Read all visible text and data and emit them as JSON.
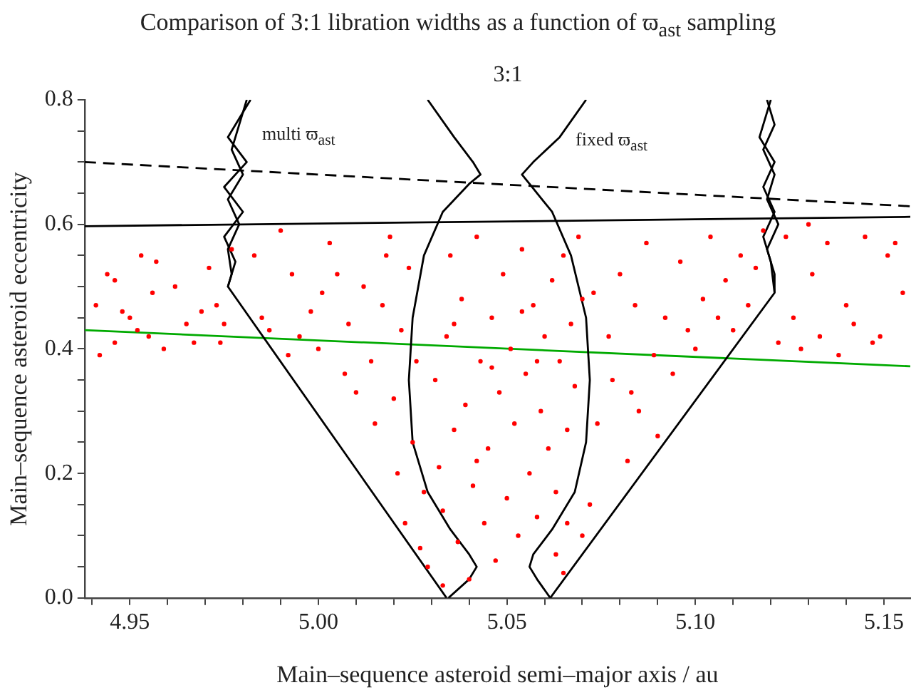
{
  "chart_data": {
    "type": "scatter",
    "title": "Comparison of 3:1 libration widths as a function of ϖ$_{ast}$ sampling",
    "subtitle": "3:1",
    "xlabel": "Main–sequence asteroid semi–major axis / au",
    "ylabel": "Main–sequence asteroid eccentricity",
    "annotations": [
      "multi ϖ$_{ast}$",
      "fixed ϖ$_{ast}$"
    ],
    "xlim": [
      4.938,
      5.157
    ],
    "xticks": [
      {
        "value": 4.94,
        "label": null
      },
      {
        "value": 4.95,
        "label": "4.95"
      },
      {
        "value": 4.96,
        "label": null
      },
      {
        "value": 4.97,
        "label": null
      },
      {
        "value": 4.98,
        "label": null
      },
      {
        "value": 4.99,
        "label": null
      },
      {
        "value": 5,
        "label": "5.00"
      },
      {
        "value": 5.01,
        "label": null
      },
      {
        "value": 5.02,
        "label": null
      },
      {
        "value": 5.03,
        "label": null
      },
      {
        "value": 5.04,
        "label": null
      },
      {
        "value": 5.05,
        "label": "5.05"
      },
      {
        "value": 5.06,
        "label": null
      },
      {
        "value": 5.07,
        "label": null
      },
      {
        "value": 5.08,
        "label": null
      },
      {
        "value": 5.09,
        "label": null
      },
      {
        "value": 5.1,
        "label": "5.10"
      },
      {
        "value": 5.11,
        "label": null
      },
      {
        "value": 5.12,
        "label": null
      },
      {
        "value": 5.13,
        "label": null
      },
      {
        "value": 5.14,
        "label": null
      },
      {
        "value": 5.15,
        "label": "5.15"
      }
    ],
    "ylim": [
      0,
      0.8
    ],
    "yticks": [
      {
        "value": 0,
        "label": "0.0"
      },
      {
        "value": 0.05,
        "label": null
      },
      {
        "value": 0.1,
        "label": null
      },
      {
        "value": 0.15,
        "label": null
      },
      {
        "value": 0.2,
        "label": "0.2"
      },
      {
        "value": 0.25,
        "label": null
      },
      {
        "value": 0.3,
        "label": null
      },
      {
        "value": 0.35,
        "label": null
      },
      {
        "value": 0.4,
        "label": "0.4"
      },
      {
        "value": 0.45,
        "label": null
      },
      {
        "value": 0.5,
        "label": null
      },
      {
        "value": 0.55,
        "label": null
      },
      {
        "value": 0.6,
        "label": "0.6"
      },
      {
        "value": 0.65,
        "label": null
      },
      {
        "value": 0.7,
        "label": null
      },
      {
        "value": 0.75,
        "label": null
      },
      {
        "value": 0.8,
        "label": "0.8"
      }
    ],
    "grid": false,
    "legend": false,
    "series": [
      {
        "type": "scatter",
        "color": "#ff0000",
        "marker": "circle",
        "x": [
          4.941,
          4.942,
          4.944,
          4.946,
          4.948,
          4.95,
          4.952,
          4.953,
          4.955,
          4.957,
          4.959,
          4.962,
          4.965,
          4.967,
          4.969,
          4.971,
          4.973,
          4.975,
          4.974,
          4.977,
          4.956,
          4.946,
          4.983,
          4.985,
          4.987,
          4.99,
          4.992,
          4.995,
          4.998,
          5.0,
          5.003,
          5.005,
          5.007,
          5.008,
          5.01,
          5.012,
          5.014,
          5.015,
          5.017,
          5.018,
          5.02,
          5.021,
          5.022,
          5.023,
          5.025,
          5.024,
          5.027,
          5.028,
          5.029,
          5.033,
          5.026,
          5.019,
          5.001,
          4.993,
          5.031,
          5.032,
          5.033,
          5.034,
          5.035,
          5.036,
          5.037,
          5.038,
          5.039,
          5.04,
          5.041,
          5.042,
          5.043,
          5.044,
          5.045,
          5.046,
          5.047,
          5.048,
          5.049,
          5.05,
          5.051,
          5.052,
          5.053,
          5.054,
          5.055,
          5.056,
          5.057,
          5.058,
          5.059,
          5.06,
          5.061,
          5.062,
          5.063,
          5.064,
          5.065,
          5.066,
          5.067,
          5.068,
          5.069,
          5.07,
          5.036,
          5.046,
          5.054,
          5.058,
          5.042,
          5.063,
          5.066,
          5.065,
          5.072,
          5.074,
          5.07,
          5.077,
          5.078,
          5.08,
          5.082,
          5.084,
          5.085,
          5.087,
          5.089,
          5.09,
          5.092,
          5.094,
          5.096,
          5.098,
          5.1,
          5.102,
          5.104,
          5.106,
          5.108,
          5.11,
          5.112,
          5.114,
          5.116,
          5.118,
          5.083,
          5.073,
          5.124,
          5.126,
          5.128,
          5.131,
          5.133,
          5.135,
          5.138,
          5.14,
          5.142,
          5.145,
          5.147,
          5.149,
          5.151,
          5.153,
          5.155,
          5.13,
          5.122
        ],
        "values": [
          0.47,
          0.39,
          0.52,
          0.51,
          0.46,
          0.45,
          0.43,
          0.55,
          0.42,
          0.54,
          0.4,
          0.5,
          0.44,
          0.41,
          0.46,
          0.53,
          0.47,
          0.44,
          0.41,
          0.56,
          0.49,
          0.41,
          0.55,
          0.45,
          0.43,
          0.59,
          0.39,
          0.42,
          0.46,
          0.4,
          0.57,
          0.52,
          0.36,
          0.44,
          0.33,
          0.5,
          0.38,
          0.28,
          0.47,
          0.55,
          0.32,
          0.2,
          0.43,
          0.12,
          0.25,
          0.53,
          0.08,
          0.17,
          0.05,
          0.02,
          0.38,
          0.58,
          0.49,
          0.52,
          0.35,
          0.21,
          0.14,
          0.42,
          0.55,
          0.27,
          0.09,
          0.48,
          0.31,
          0.03,
          0.18,
          0.58,
          0.38,
          0.12,
          0.24,
          0.45,
          0.06,
          0.33,
          0.52,
          0.16,
          0.4,
          0.28,
          0.1,
          0.56,
          0.36,
          0.2,
          0.47,
          0.13,
          0.3,
          0.42,
          0.24,
          0.51,
          0.17,
          0.38,
          0.55,
          0.27,
          0.44,
          0.34,
          0.58,
          0.48,
          0.44,
          0.37,
          0.46,
          0.38,
          0.22,
          0.07,
          0.12,
          0.04,
          0.15,
          0.28,
          0.1,
          0.42,
          0.35,
          0.52,
          0.22,
          0.47,
          0.3,
          0.57,
          0.39,
          0.26,
          0.45,
          0.36,
          0.54,
          0.43,
          0.4,
          0.48,
          0.58,
          0.45,
          0.51,
          0.43,
          0.55,
          0.47,
          0.53,
          0.59,
          0.33,
          0.49,
          0.58,
          0.45,
          0.4,
          0.52,
          0.42,
          0.57,
          0.39,
          0.47,
          0.44,
          0.58,
          0.41,
          0.42,
          0.55,
          0.57,
          0.49,
          0.6,
          0.41
        ]
      },
      {
        "type": "line",
        "color": "#000000",
        "marker": "none",
        "line_style": "solid",
        "x": [
          4.981,
          4.979,
          4.977,
          4.98,
          4.976,
          4.979,
          4.976,
          4.977,
          4.976,
          5.034
        ],
        "values": [
          0.8,
          0.76,
          0.72,
          0.68,
          0.64,
          0.6,
          0.56,
          0.52,
          0.5,
          0
        ]
      },
      {
        "type": "line",
        "color": "#000000",
        "marker": "none",
        "line_style": "solid",
        "x": [
          4.982,
          4.976,
          4.981,
          4.975,
          4.98,
          4.975,
          4.978,
          4.976
        ],
        "values": [
          0.8,
          0.74,
          0.7,
          0.66,
          0.62,
          0.58,
          0.54,
          0.5
        ]
      },
      {
        "type": "line",
        "color": "#000000",
        "marker": "none",
        "line_style": "solid",
        "x": [
          5.119,
          5.121,
          5.118,
          5.121,
          5.119,
          5.122,
          5.119,
          5.121,
          5.121,
          5.0615
        ],
        "values": [
          0.8,
          0.76,
          0.72,
          0.68,
          0.64,
          0.6,
          0.56,
          0.52,
          0.49,
          0
        ]
      },
      {
        "type": "line",
        "color": "#000000",
        "marker": "none",
        "line_style": "solid",
        "x": [
          5.12,
          5.117,
          5.121,
          5.118,
          5.121,
          5.118,
          5.12,
          5.121
        ],
        "values": [
          0.8,
          0.74,
          0.7,
          0.66,
          0.62,
          0.58,
          0.54,
          0.49
        ]
      },
      {
        "type": "line",
        "color": "#000000",
        "marker": "none",
        "line_style": "solid",
        "x": [
          5.029,
          5.036,
          5.041,
          5.043,
          5.04,
          5.033,
          5.028,
          5.025,
          5.024,
          5.025,
          5.029,
          5.035,
          5.04,
          5.042,
          5.04,
          5.0345
        ],
        "values": [
          0.8,
          0.74,
          0.7,
          0.68,
          0.665,
          0.62,
          0.55,
          0.45,
          0.35,
          0.25,
          0.17,
          0.11,
          0.07,
          0.05,
          0.03,
          0
        ]
      },
      {
        "type": "line",
        "color": "#000000",
        "marker": "none",
        "line_style": "solid",
        "x": [
          5.071,
          5.064,
          5.057,
          5.054,
          5.056,
          5.062,
          5.067,
          5.071,
          5.072,
          5.071,
          5.068,
          5.062,
          5.057,
          5.056,
          5.058,
          5.0615
        ],
        "values": [
          0.8,
          0.74,
          0.7,
          0.68,
          0.665,
          0.62,
          0.55,
          0.45,
          0.35,
          0.25,
          0.17,
          0.11,
          0.07,
          0.05,
          0.03,
          0
        ]
      },
      {
        "type": "line",
        "color": "#000000",
        "marker": "none",
        "line_style": "dashed",
        "x": [
          4.938,
          5.157
        ],
        "values": [
          0.7,
          0.629
        ]
      },
      {
        "type": "line",
        "color": "#000000",
        "marker": "none",
        "line_style": "solid",
        "x": [
          4.938,
          5.157
        ],
        "values": [
          0.597,
          0.612
        ]
      },
      {
        "type": "line",
        "color": "#00aa00",
        "marker": "none",
        "line_style": "solid",
        "x": [
          4.938,
          5.157
        ],
        "values": [
          0.43,
          0.372
        ]
      }
    ]
  }
}
